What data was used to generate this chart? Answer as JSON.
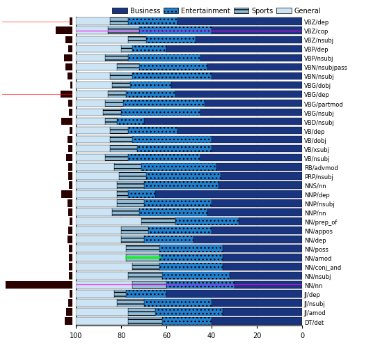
{
  "labels": [
    "VBZ/dep",
    "VBZ/cop",
    "VBZ/nsubj",
    "VBP/dep",
    "VBP/nsubj",
    "VBN/nsubjpass",
    "VBN/nsubj",
    "VBG/dobj",
    "VBG/dep",
    "VBG/partmod",
    "VBG/nsubj",
    "VBD/nsubj",
    "VB/dep",
    "VB/dobj",
    "VB/xsubj",
    "VB/nsubj",
    "RB/advmod",
    "PRP/nsubj",
    "NNS/nn",
    "NNP/dep",
    "NNP/nsubj",
    "NNP/nn",
    "NN/prep_of",
    "NN/appos",
    "NN/dep",
    "NN/poss",
    "NN/amod",
    "NN/conj_and",
    "NN/nsubj",
    "NN/nn",
    "JJ/dep",
    "JJ/nsubj",
    "JJ/amod",
    "DT/det"
  ],
  "business": [
    55,
    40,
    47,
    60,
    45,
    42,
    40,
    58,
    56,
    43,
    45,
    70,
    55,
    40,
    40,
    45,
    38,
    36,
    37,
    65,
    40,
    42,
    28,
    40,
    48,
    35,
    35,
    35,
    32,
    30,
    60,
    40,
    35,
    40
  ],
  "entertainment": [
    22,
    32,
    22,
    15,
    32,
    30,
    35,
    18,
    22,
    36,
    35,
    12,
    22,
    35,
    33,
    32,
    33,
    33,
    33,
    12,
    30,
    30,
    28,
    28,
    22,
    28,
    28,
    28,
    30,
    30,
    18,
    30,
    30,
    22
  ],
  "sports": [
    8,
    14,
    8,
    5,
    10,
    10,
    10,
    8,
    8,
    8,
    8,
    5,
    8,
    10,
    12,
    10,
    12,
    12,
    12,
    5,
    12,
    12,
    15,
    12,
    10,
    15,
    15,
    12,
    15,
    15,
    5,
    12,
    12,
    15
  ],
  "general": [
    15,
    14,
    23,
    20,
    13,
    18,
    15,
    16,
    14,
    13,
    12,
    13,
    15,
    15,
    15,
    13,
    17,
    19,
    18,
    18,
    18,
    16,
    29,
    20,
    20,
    22,
    22,
    25,
    23,
    25,
    17,
    18,
    23,
    23
  ],
  "left_bars": [
    3,
    20,
    8,
    5,
    10,
    8,
    6,
    2,
    14,
    5,
    4,
    13,
    3,
    6,
    5,
    7,
    5,
    5,
    4,
    13,
    6,
    5,
    3,
    5,
    6,
    4,
    4,
    4,
    4,
    80,
    3,
    5,
    7,
    9
  ],
  "color_business": "#1a3580",
  "color_entertainment": "#2080d0",
  "color_sports": "#90bcd8",
  "color_general": "#cce4f4",
  "color_left": "#2a0000",
  "magenta_rows": [
    1,
    29
  ],
  "green_row": 26,
  "figwidth": 5.46,
  "figheight": 5.06,
  "dpi": 100
}
